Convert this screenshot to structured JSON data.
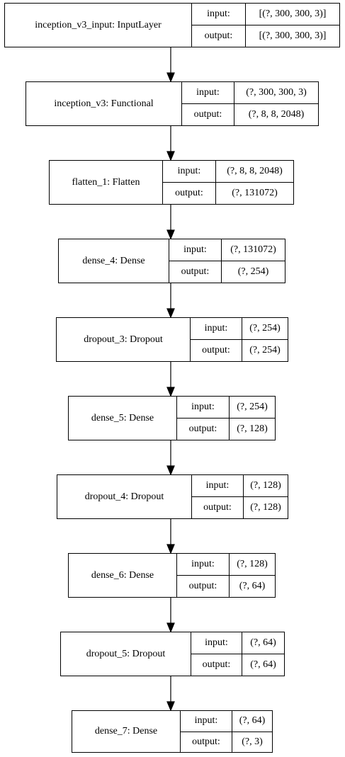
{
  "diagram": {
    "port_labels": {
      "input": "input:",
      "output": "output:"
    },
    "nodes": [
      {
        "name": "inception_v3_input: InputLayer",
        "input": "[(?, 300, 300, 3)]",
        "output": "[(?, 300, 300, 3)]"
      },
      {
        "name": "inception_v3: Functional",
        "input": "(?, 300, 300, 3)",
        "output": "(?, 8, 8, 2048)"
      },
      {
        "name": "flatten_1: Flatten",
        "input": "(?, 8, 8, 2048)",
        "output": "(?, 131072)"
      },
      {
        "name": "dense_4: Dense",
        "input": "(?, 131072)",
        "output": "(?, 254)"
      },
      {
        "name": "dropout_3: Dropout",
        "input": "(?, 254)",
        "output": "(?, 254)"
      },
      {
        "name": "dense_5: Dense",
        "input": "(?, 254)",
        "output": "(?, 128)"
      },
      {
        "name": "dropout_4: Dropout",
        "input": "(?, 128)",
        "output": "(?, 128)"
      },
      {
        "name": "dense_6: Dense",
        "input": "(?, 128)",
        "output": "(?, 64)"
      },
      {
        "name": "dropout_5: Dropout",
        "input": "(?, 64)",
        "output": "(?, 64)"
      },
      {
        "name": "dense_7: Dense",
        "input": "(?, 64)",
        "output": "(?, 3)"
      }
    ]
  }
}
